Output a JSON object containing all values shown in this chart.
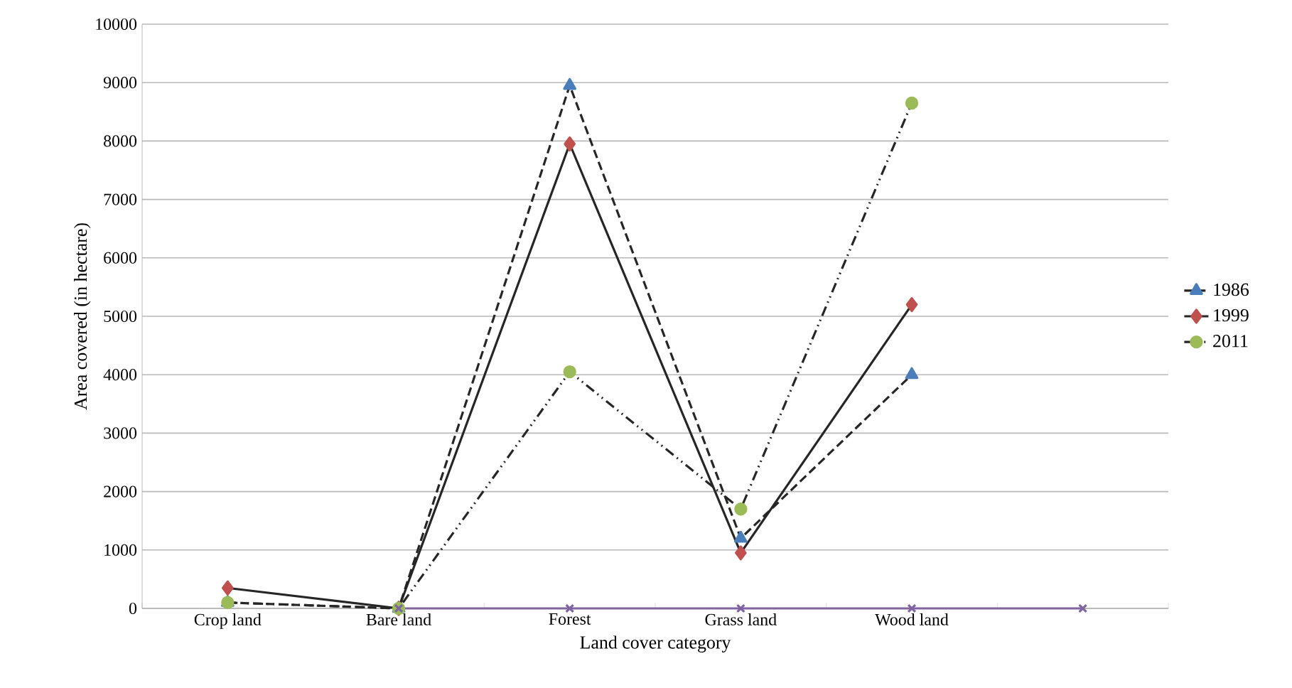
{
  "chart_data": {
    "type": "line",
    "xlabel": "Land cover category",
    "ylabel": "Area covered (in hectare)",
    "categories": [
      "Crop land",
      "Bare land",
      "Forest",
      "Grass land",
      "Wood land",
      null
    ],
    "series": [
      {
        "name": "1986",
        "color": "#4a7ebb",
        "marker": "triangle",
        "line_style": "dashed",
        "values": [
          100,
          0,
          8950,
          1200,
          4000,
          null
        ]
      },
      {
        "name": "1999",
        "color": "#c0504d",
        "marker": "diamond",
        "line_style": "solid",
        "values": [
          350,
          0,
          7950,
          950,
          5200,
          null
        ]
      },
      {
        "name": "2011",
        "color": "#9bbb59",
        "marker": "circle",
        "line_style": "dashdot",
        "values": [
          100,
          0,
          4050,
          1700,
          8650,
          null
        ]
      },
      {
        "color": "#8064a2",
        "marker": "cross",
        "line_style": "solid",
        "values": [
          null,
          0,
          0,
          0,
          0,
          0
        ]
      }
    ],
    "ylim": [
      0,
      10000
    ],
    "yticks": [
      0,
      1000,
      2000,
      3000,
      4000,
      5000,
      6000,
      7000,
      8000,
      9000,
      10000
    ],
    "grid": "y",
    "legend": "right"
  }
}
